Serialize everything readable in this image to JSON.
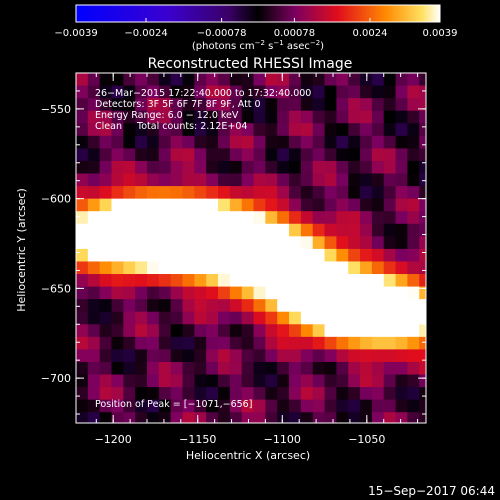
{
  "chart_data": {
    "type": "heatmap",
    "title": "Reconstructed RHESSI Image",
    "xlabel": "Heliocentric X (arcsec)",
    "ylabel": "Heliocentric Y (arcsec)",
    "xlim": [
      -1222,
      -1015
    ],
    "ylim": [
      -725,
      -530
    ],
    "x_ticks": [
      -1200,
      -1150,
      -1100,
      -1050
    ],
    "x_tick_labels": [
      "−1200",
      "−1150",
      "−1100",
      "−1050"
    ],
    "y_ticks": [
      -550,
      -600,
      -650,
      -700
    ],
    "y_tick_labels": [
      "−550",
      "−600",
      "−650",
      "−700"
    ],
    "colorbar": {
      "range": [
        -0.0039,
        0.0039
      ],
      "ticks": [
        -0.0039,
        -0.0024,
        -0.00078,
        0.00078,
        0.0024,
        0.0039
      ],
      "tick_labels": [
        "−0.0039",
        "−0.0024",
        "−0.00078",
        "0.00078",
        "0.0024",
        "0.0039"
      ],
      "units_html": "(photons cm<tspan baseline-shift=\"super\" font-size=\"7\">−2</tspan> s<tspan baseline-shift=\"super\" font-size=\"7\">−1</tspan> asec<tspan baseline-shift=\"super\" font-size=\"7\">−2</tspan>)"
    },
    "annotations": [
      "26−Mar−2015 17:22:40.000 to 17:32:40.000",
      "Detectors: 3F 5F 6F 7F 8F 9F, Att 0",
      "Energy Range: 6.0 − 12.0 keV",
      "Clean     Total counts: 2.12E+04"
    ],
    "peak_label": "Position of Peak = [−1071,−656]",
    "peak_position": [
      -1071,
      -656
    ],
    "source_band": {
      "centers": [
        [
          -1210,
          -622
        ],
        [
          -1182,
          -618
        ],
        [
          -1160,
          -618
        ],
        [
          -1140,
          -622
        ],
        [
          -1120,
          -628
        ],
        [
          -1100,
          -638
        ],
        [
          -1071,
          -656
        ],
        [
          -1045,
          -663
        ],
        [
          -1025,
          -668
        ]
      ],
      "amplitudes": [
        0.0028,
        0.0039,
        0.0032,
        0.0027,
        0.003,
        0.0031,
        0.0039,
        0.0031,
        0.0024
      ],
      "width_arcsec": [
        28,
        14
      ]
    }
  },
  "footer": {
    "date": "15−Sep−2017 06:44"
  }
}
